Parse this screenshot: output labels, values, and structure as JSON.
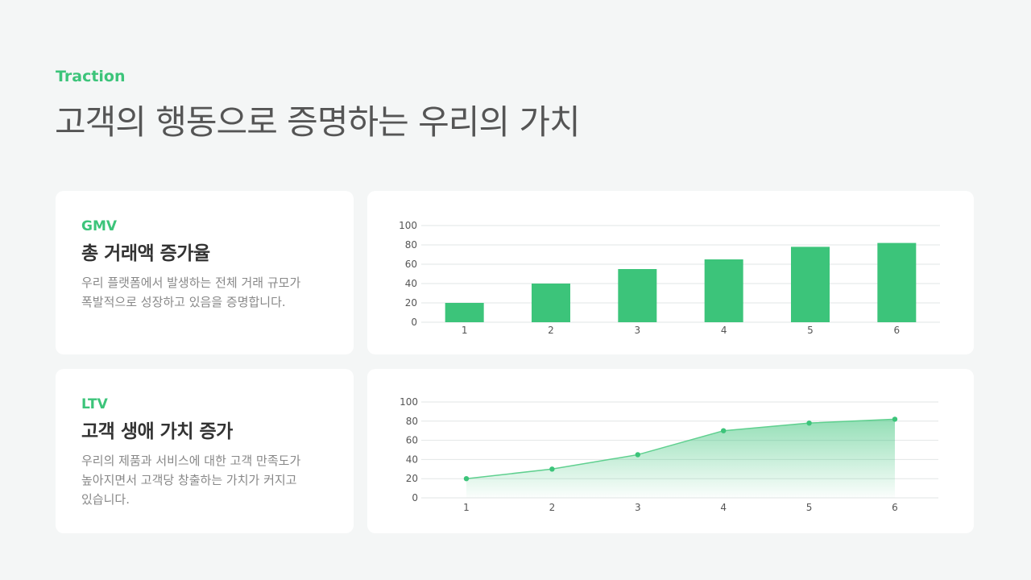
{
  "header": {
    "eyebrow": "Traction",
    "title": "고객의 행동으로 증명하는 우리의 가치"
  },
  "cards": [
    {
      "kicker": "GMV",
      "title": "총 거래액 증가율",
      "desc_lines": [
        "우리 플랫폼에서 발생하는 전체 거래 규모가",
        "폭발적으로 성장하고 있음을 증명합니다."
      ]
    },
    {
      "kicker": "LTV",
      "title": "고객 생애 가치 증가",
      "desc_lines": [
        "우리의 제품과 서비스에 대한 고객 만족도가",
        "높아지면서 고객당 창출하는 가치가 커지고",
        "있습니다."
      ]
    }
  ],
  "colors": {
    "accent": "#3cc47a",
    "grid": "#e2e6e6"
  },
  "chart_data": [
    {
      "type": "bar",
      "categories": [
        "1",
        "2",
        "3",
        "4",
        "5",
        "6"
      ],
      "values": [
        20,
        40,
        55,
        65,
        78,
        82
      ],
      "ylim": [
        0,
        100
      ],
      "yticks": [
        "0",
        "20",
        "40",
        "60",
        "80",
        "100"
      ],
      "grid": true
    },
    {
      "type": "area",
      "x": [
        "1",
        "2",
        "3",
        "4",
        "5",
        "6"
      ],
      "values": [
        20,
        30,
        45,
        70,
        78,
        82
      ],
      "ylim": [
        0,
        100
      ],
      "yticks": [
        "0",
        "20",
        "40",
        "60",
        "80",
        "100"
      ],
      "grid": true
    }
  ]
}
